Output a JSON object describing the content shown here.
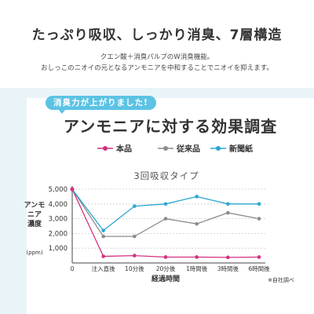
{
  "headline": "たっぷり吸収、しっかり消臭、7層構造",
  "description_lines": [
    "クエン酸＋消臭パルプのW消臭機能。",
    "おしっこのニオイの元となるアンモニアを中和することでニオイを抑えます。"
  ],
  "callout": "消臭力が上がりました!",
  "chart_data": {
    "type": "line",
    "title": "アンモニアに対する効果調査",
    "subtitle": "3回吸収タイプ",
    "categories": [
      "0",
      "注入直後",
      "10分後",
      "20分後",
      "1時間後",
      "3時間後",
      "6時間後"
    ],
    "xlabel": "経過時間",
    "ylabel_lines": [
      "アンモ",
      "ニア",
      "濃度"
    ],
    "ylabel_unit": "(ppm)",
    "y_ticks": [
      "5,000",
      "4,000",
      "3,000",
      "2,000",
      "1,000"
    ],
    "ylim": [
      0,
      5000
    ],
    "grid": true,
    "legend_position": "top",
    "note": "※自社調べ",
    "series": [
      {
        "name": "本品",
        "color": "#d2317f",
        "values": [
          5000,
          450,
          500,
          400,
          400,
          380,
          400
        ]
      },
      {
        "name": "従来品",
        "color": "#8c8c8c",
        "values": [
          5000,
          1800,
          1800,
          3000,
          2650,
          3400,
          3000
        ]
      },
      {
        "name": "新聞紙",
        "color": "#2aa6d2",
        "values": [
          5000,
          2200,
          3850,
          4000,
          4500,
          4000,
          4000
        ]
      }
    ]
  }
}
